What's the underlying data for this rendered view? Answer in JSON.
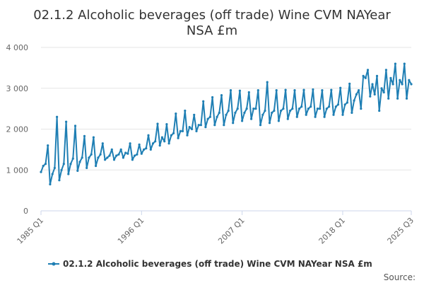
{
  "chart_data": {
    "type": "line",
    "title_lines": [
      "02.1.2 Alcoholic beverages (off trade) Wine CVM NAYear",
      "NSA £m"
    ],
    "xlabel": "",
    "ylabel": "",
    "ylim": [
      0,
      4000
    ],
    "y_ticks": [
      0,
      1000,
      2000,
      3000,
      4000
    ],
    "y_tick_labels": [
      "0",
      "1 000",
      "2 000",
      "3 000",
      "4 000"
    ],
    "x_tick_labels": [
      {
        "label": "1985 Q1",
        "index": 0
      },
      {
        "label": "1996 Q1",
        "index": 44
      },
      {
        "label": "2007 Q1",
        "index": 88
      },
      {
        "label": "2018 Q1",
        "index": 132
      },
      {
        "label": "2025 Q3",
        "index": 162
      }
    ],
    "grid": true,
    "legend_position": "bottom",
    "color": "#1f7fb4",
    "series": [
      {
        "name": "02.1.2 Alcoholic beverages (off trade) Wine CVM NAYear NSA £m",
        "periods": [
          "1985 Q1",
          "1985 Q2",
          "1985 Q3",
          "1985 Q4",
          "1986 Q1",
          "1986 Q2",
          "1986 Q3",
          "1986 Q4",
          "1987 Q1",
          "1987 Q2",
          "1987 Q3",
          "1987 Q4",
          "1988 Q1",
          "1988 Q2",
          "1988 Q3",
          "1988 Q4",
          "1989 Q1",
          "1989 Q2",
          "1989 Q3",
          "1989 Q4",
          "1990 Q1",
          "1990 Q2",
          "1990 Q3",
          "1990 Q4",
          "1991 Q1",
          "1991 Q2",
          "1991 Q3",
          "1991 Q4",
          "1992 Q1",
          "1992 Q2",
          "1992 Q3",
          "1992 Q4",
          "1993 Q1",
          "1993 Q2",
          "1993 Q3",
          "1993 Q4",
          "1994 Q1",
          "1994 Q2",
          "1994 Q3",
          "1994 Q4",
          "1995 Q1",
          "1995 Q2",
          "1995 Q3",
          "1995 Q4",
          "1996 Q1",
          "1996 Q2",
          "1996 Q3",
          "1996 Q4",
          "1997 Q1",
          "1997 Q2",
          "1997 Q3",
          "1997 Q4",
          "1998 Q1",
          "1998 Q2",
          "1998 Q3",
          "1998 Q4",
          "1999 Q1",
          "1999 Q2",
          "1999 Q3",
          "1999 Q4",
          "2000 Q1",
          "2000 Q2",
          "2000 Q3",
          "2000 Q4",
          "2001 Q1",
          "2001 Q2",
          "2001 Q3",
          "2001 Q4",
          "2002 Q1",
          "2002 Q2",
          "2002 Q3",
          "2002 Q4",
          "2003 Q1",
          "2003 Q2",
          "2003 Q3",
          "2003 Q4",
          "2004 Q1",
          "2004 Q2",
          "2004 Q3",
          "2004 Q4",
          "2005 Q1",
          "2005 Q2",
          "2005 Q3",
          "2005 Q4",
          "2006 Q1",
          "2006 Q2",
          "2006 Q3",
          "2006 Q4",
          "2007 Q1",
          "2007 Q2",
          "2007 Q3",
          "2007 Q4",
          "2008 Q1",
          "2008 Q2",
          "2008 Q3",
          "2008 Q4",
          "2009 Q1",
          "2009 Q2",
          "2009 Q3",
          "2009 Q4",
          "2010 Q1",
          "2010 Q2",
          "2010 Q3",
          "2010 Q4",
          "2011 Q1",
          "2011 Q2",
          "2011 Q3",
          "2011 Q4",
          "2012 Q1",
          "2012 Q2",
          "2012 Q3",
          "2012 Q4",
          "2013 Q1",
          "2013 Q2",
          "2013 Q3",
          "2013 Q4",
          "2014 Q1",
          "2014 Q2",
          "2014 Q3",
          "2014 Q4",
          "2015 Q1",
          "2015 Q2",
          "2015 Q3",
          "2015 Q4",
          "2016 Q1",
          "2016 Q2",
          "2016 Q3",
          "2016 Q4",
          "2017 Q1",
          "2017 Q2",
          "2017 Q3",
          "2017 Q4",
          "2018 Q1",
          "2018 Q2",
          "2018 Q3",
          "2018 Q4",
          "2019 Q1",
          "2019 Q2",
          "2019 Q3",
          "2019 Q4",
          "2020 Q1",
          "2020 Q2",
          "2020 Q3",
          "2020 Q4",
          "2021 Q1",
          "2021 Q2",
          "2021 Q3",
          "2021 Q4",
          "2022 Q1",
          "2022 Q2",
          "2022 Q3",
          "2022 Q4",
          "2023 Q1",
          "2023 Q2",
          "2023 Q3",
          "2023 Q4",
          "2024 Q1",
          "2024 Q2",
          "2024 Q3",
          "2024 Q4",
          "2025 Q1",
          "2025 Q2",
          "2025 Q3"
        ],
        "values": [
          950,
          1100,
          1150,
          1600,
          650,
          900,
          1050,
          2300,
          750,
          1000,
          1150,
          2180,
          900,
          1150,
          1280,
          2080,
          980,
          1200,
          1300,
          1830,
          1050,
          1300,
          1380,
          1800,
          1100,
          1300,
          1380,
          1650,
          1250,
          1300,
          1350,
          1500,
          1250,
          1350,
          1380,
          1500,
          1300,
          1420,
          1400,
          1650,
          1250,
          1350,
          1380,
          1620,
          1400,
          1500,
          1530,
          1850,
          1500,
          1650,
          1700,
          2130,
          1600,
          1800,
          1700,
          2120,
          1650,
          1850,
          1900,
          2380,
          1780,
          1950,
          1950,
          2450,
          1850,
          2050,
          2000,
          2350,
          1950,
          2100,
          2100,
          2680,
          2050,
          2250,
          2300,
          2780,
          2100,
          2300,
          2400,
          2830,
          2100,
          2350,
          2450,
          2950,
          2150,
          2400,
          2500,
          2940,
          2200,
          2400,
          2500,
          2900,
          2250,
          2500,
          2500,
          2950,
          2100,
          2350,
          2450,
          3150,
          2150,
          2400,
          2450,
          2950,
          2200,
          2450,
          2500,
          2960,
          2250,
          2450,
          2500,
          2950,
          2300,
          2500,
          2550,
          2960,
          2350,
          2500,
          2550,
          2970,
          2300,
          2500,
          2500,
          2950,
          2300,
          2500,
          2550,
          2960,
          2350,
          2550,
          2600,
          3010,
          2350,
          2600,
          2650,
          3110,
          2400,
          2700,
          2850,
          2950,
          2500,
          3300,
          3250,
          3450,
          2800,
          3100,
          2850,
          3300,
          2450,
          3000,
          2900,
          3450,
          2750,
          3250,
          3100,
          3600,
          2750,
          3200,
          3100,
          3600,
          2750,
          3200,
          3100
        ]
      }
    ]
  },
  "legend": {
    "label": "02.1.2 Alcoholic beverages (off trade) Wine CVM NAYear NSA £m"
  },
  "footer": {
    "source_label": "Source:"
  }
}
